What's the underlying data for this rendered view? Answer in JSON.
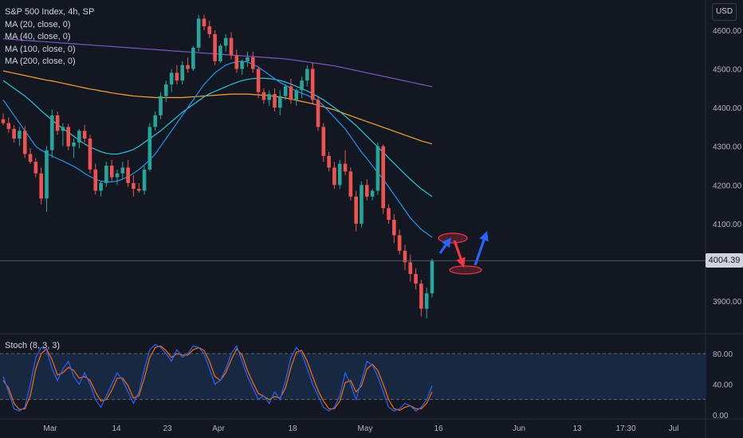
{
  "symbol_label": "S&P 500 Index, 4h, SP",
  "currency_label": "USD",
  "last_price": "4004.39",
  "indicators": [
    "MA (20, close, 0)",
    "MA (40, close, 0)",
    "MA (100, close, 0)",
    "MA (200, close, 0)"
  ],
  "oscillator_label": "Stoch (8, 3, 3)",
  "colors": {
    "up": "#26a69a",
    "down": "#ef5350",
    "ma20": "#2196f3",
    "ma40": "#26c6da",
    "ma100": "#f7a33a",
    "ma200": "#7e57c2",
    "stoch_k": "#2962ff",
    "stoch_d": "#ff6d00",
    "arrow_blue": "#2962ff",
    "arrow_red": "#f23645"
  },
  "chart_data": [
    {
      "type": "candlestick",
      "title": "S&P 500 Index, 4h, SP",
      "y_range": [
        3820,
        4660
      ],
      "y_ticks": [
        3900,
        4000,
        4100,
        4200,
        4300,
        4400,
        4500,
        4600
      ],
      "y_tick_labels": [
        "3900.00",
        "4000.00",
        "4100.00",
        "4200.00",
        "4300.00",
        "4400.00",
        "4500.00",
        "4600.00"
      ],
      "x_tick_labels": [
        "Mar",
        "14",
        "23",
        "Apr",
        "18",
        "May",
        "16",
        "Jun",
        "13",
        "17:30",
        "Jul"
      ],
      "candles_ohlc": [
        [
          4370,
          4385,
          4355,
          4360
        ],
        [
          4360,
          4375,
          4335,
          4345
        ],
        [
          4345,
          4355,
          4310,
          4320
        ],
        [
          4320,
          4350,
          4300,
          4340
        ],
        [
          4340,
          4352,
          4270,
          4280
        ],
        [
          4280,
          4295,
          4255,
          4260
        ],
        [
          4260,
          4270,
          4220,
          4230
        ],
        [
          4230,
          4245,
          4150,
          4165
        ],
        [
          4165,
          4300,
          4130,
          4290
        ],
        [
          4290,
          4395,
          4270,
          4380
        ],
        [
          4380,
          4390,
          4330,
          4340
        ],
        [
          4340,
          4360,
          4300,
          4350
        ],
        [
          4350,
          4358,
          4290,
          4300
        ],
        [
          4300,
          4320,
          4270,
          4310
        ],
        [
          4310,
          4345,
          4295,
          4340
        ],
        [
          4340,
          4355,
          4310,
          4320
        ],
        [
          4320,
          4330,
          4230,
          4240
        ],
        [
          4240,
          4255,
          4175,
          4185
        ],
        [
          4185,
          4210,
          4170,
          4205
        ],
        [
          4205,
          4260,
          4195,
          4250
        ],
        [
          4250,
          4265,
          4210,
          4220
        ],
        [
          4220,
          4240,
          4200,
          4230
        ],
        [
          4230,
          4260,
          4215,
          4245
        ],
        [
          4245,
          4265,
          4195,
          4205
        ],
        [
          4205,
          4225,
          4170,
          4190
        ],
        [
          4190,
          4205,
          4180,
          4185
        ],
        [
          4185,
          4250,
          4175,
          4240
        ],
        [
          4240,
          4360,
          4235,
          4350
        ],
        [
          4350,
          4390,
          4340,
          4380
        ],
        [
          4380,
          4440,
          4370,
          4430
        ],
        [
          4430,
          4470,
          4415,
          4460
        ],
        [
          4460,
          4500,
          4440,
          4490
        ],
        [
          4490,
          4510,
          4460,
          4470
        ],
        [
          4470,
          4520,
          4460,
          4510
        ],
        [
          4510,
          4530,
          4490,
          4500
        ],
        [
          4500,
          4560,
          4495,
          4555
        ],
        [
          4555,
          4640,
          4545,
          4630
        ],
        [
          4630,
          4640,
          4600,
          4610
        ],
        [
          4610,
          4625,
          4580,
          4590
        ],
        [
          4590,
          4600,
          4510,
          4520
        ],
        [
          4520,
          4565,
          4515,
          4560
        ],
        [
          4560,
          4590,
          4545,
          4580
        ],
        [
          4580,
          4595,
          4525,
          4535
        ],
        [
          4535,
          4550,
          4490,
          4500
        ],
        [
          4500,
          4525,
          4485,
          4520
        ],
        [
          4520,
          4545,
          4505,
          4530
        ],
        [
          4530,
          4545,
          4490,
          4500
        ],
        [
          4500,
          4505,
          4425,
          4440
        ],
        [
          4440,
          4450,
          4410,
          4420
        ],
        [
          4420,
          4445,
          4405,
          4435
        ],
        [
          4435,
          4450,
          4390,
          4400
        ],
        [
          4400,
          4445,
          4380,
          4430
        ],
        [
          4430,
          4460,
          4420,
          4455
        ],
        [
          4455,
          4475,
          4410,
          4420
        ],
        [
          4420,
          4450,
          4405,
          4445
        ],
        [
          4445,
          4480,
          4425,
          4470
        ],
        [
          4470,
          4510,
          4455,
          4500
        ],
        [
          4500,
          4515,
          4410,
          4420
        ],
        [
          4420,
          4430,
          4340,
          4350
        ],
        [
          4350,
          4360,
          4260,
          4275
        ],
        [
          4275,
          4285,
          4235,
          4245
        ],
        [
          4245,
          4260,
          4190,
          4200
        ],
        [
          4200,
          4265,
          4190,
          4255
        ],
        [
          4255,
          4290,
          4225,
          4235
        ],
        [
          4235,
          4245,
          4160,
          4170
        ],
        [
          4170,
          4185,
          4080,
          4100
        ],
        [
          4100,
          4210,
          4090,
          4200
        ],
        [
          4200,
          4215,
          4160,
          4170
        ],
        [
          4170,
          4190,
          4160,
          4185
        ],
        [
          4185,
          4310,
          4175,
          4300
        ],
        [
          4300,
          4305,
          4125,
          4140
        ],
        [
          4140,
          4150,
          4100,
          4110
        ],
        [
          4110,
          4125,
          4050,
          4070
        ],
        [
          4070,
          4085,
          4020,
          4030
        ],
        [
          4030,
          4045,
          3980,
          4000
        ],
        [
          4000,
          4020,
          3950,
          3970
        ],
        [
          3970,
          3985,
          3930,
          3945
        ],
        [
          3945,
          3955,
          3860,
          3880
        ],
        [
          3880,
          3935,
          3855,
          3920
        ],
        [
          3920,
          4010,
          3910,
          4004.39
        ]
      ],
      "ma20": [
        4420,
        4400,
        4380,
        4360,
        4340,
        4320,
        4300,
        4290,
        4282,
        4275,
        4268,
        4262,
        4255,
        4248,
        4240,
        4230,
        4222,
        4215,
        4210,
        4208,
        4208,
        4210,
        4215,
        4222,
        4230,
        4240,
        4252,
        4265,
        4280,
        4300,
        4320,
        4340,
        4360,
        4380,
        4400,
        4420,
        4440,
        4460,
        4475,
        4490,
        4500,
        4510,
        4515,
        4518,
        4520,
        4518,
        4512,
        4505,
        4495,
        4485,
        4475,
        4465,
        4458,
        4450,
        4443,
        4437,
        4432,
        4425,
        4418,
        4405,
        4390,
        4375,
        4360,
        4345,
        4325,
        4305,
        4285,
        4268,
        4250,
        4232,
        4215,
        4195,
        4175,
        4155,
        4135,
        4115,
        4100,
        4085,
        4075,
        4065
      ],
      "ma40": [
        4470,
        4460,
        4450,
        4440,
        4430,
        4418,
        4405,
        4392,
        4380,
        4368,
        4356,
        4346,
        4336,
        4326,
        4316,
        4306,
        4298,
        4292,
        4286,
        4282,
        4280,
        4280,
        4283,
        4287,
        4292,
        4300,
        4310,
        4320,
        4330,
        4340,
        4352,
        4364,
        4376,
        4388,
        4398,
        4408,
        4418,
        4428,
        4436,
        4442,
        4448,
        4454,
        4460,
        4465,
        4470,
        4473,
        4475,
        4476,
        4476,
        4475,
        4473,
        4470,
        4466,
        4461,
        4455,
        4449,
        4443,
        4436,
        4428,
        4420,
        4410,
        4400,
        4390,
        4378,
        4366,
        4354,
        4340,
        4326,
        4312,
        4298,
        4284,
        4270,
        4256,
        4242,
        4228,
        4215,
        4202,
        4190,
        4180,
        4170
      ],
      "ma100": [
        4495,
        4492,
        4489,
        4486,
        4483,
        4480,
        4477,
        4474,
        4471,
        4469,
        4466,
        4463,
        4460,
        4457,
        4454,
        4451,
        4448,
        4446,
        4443,
        4441,
        4438,
        4436,
        4434,
        4432,
        4430,
        4429,
        4428,
        4427,
        4426,
        4426,
        4426,
        4426,
        4426,
        4426,
        4427,
        4428,
        4429,
        4430,
        4431,
        4432,
        4433,
        4434,
        4435,
        4435,
        4435,
        4435,
        4434,
        4433,
        4432,
        4431,
        4429,
        4427,
        4425,
        4422,
        4419,
        4416,
        4413,
        4410,
        4406,
        4402,
        4398,
        4394,
        4389,
        4384,
        4379,
        4374,
        4369,
        4364,
        4359,
        4354,
        4349,
        4344,
        4339,
        4334,
        4329,
        4324,
        4319,
        4314,
        4310,
        4306
      ],
      "ma200": [
        4578,
        4577,
        4576,
        4575,
        4574,
        4573,
        4572,
        4571,
        4570,
        4569,
        4568,
        4567,
        4566,
        4565,
        4564,
        4563,
        4562,
        4561,
        4560,
        4559,
        4558,
        4557,
        4556,
        4555,
        4554,
        4553,
        4552,
        4551,
        4550,
        4549,
        4548,
        4547,
        4546,
        4545,
        4544,
        4543,
        4542,
        4541,
        4540,
        4539,
        4538,
        4537,
        4536,
        4535,
        4534,
        4533,
        4532,
        4531,
        4530,
        4529,
        4528,
        4527,
        4526,
        4524,
        4522,
        4520,
        4518,
        4516,
        4514,
        4512,
        4510,
        4508,
        4505,
        4502,
        4499,
        4496,
        4493,
        4490,
        4487,
        4484,
        4481,
        4478,
        4475,
        4472,
        4469,
        4466,
        4463,
        4460,
        4457,
        4454
      ]
    },
    {
      "type": "line",
      "title": "Stoch (8, 3, 3)",
      "y_range": [
        0,
        100
      ],
      "y_ticks": [
        0,
        40,
        80
      ],
      "y_tick_labels": [
        "0.00",
        "40.00",
        "80.00"
      ],
      "band": [
        20,
        80
      ],
      "series": [
        {
          "name": "%K",
          "values": [
            50,
            30,
            8,
            5,
            10,
            40,
            75,
            88,
            85,
            60,
            45,
            60,
            70,
            50,
            40,
            55,
            40,
            20,
            10,
            25,
            40,
            55,
            45,
            30,
            15,
            30,
            60,
            85,
            92,
            88,
            80,
            70,
            85,
            75,
            80,
            90,
            88,
            80,
            60,
            40,
            45,
            60,
            80,
            90,
            70,
            50,
            35,
            20,
            25,
            15,
            30,
            20,
            45,
            75,
            88,
            80,
            60,
            40,
            25,
            10,
            5,
            10,
            25,
            55,
            40,
            20,
            45,
            70,
            65,
            50,
            30,
            10,
            5,
            8,
            15,
            12,
            5,
            10,
            20,
            38
          ]
        },
        {
          "name": "%D",
          "values": [
            45,
            35,
            15,
            7,
            8,
            25,
            60,
            80,
            86,
            72,
            52,
            55,
            62,
            58,
            48,
            50,
            45,
            30,
            18,
            20,
            32,
            48,
            48,
            38,
            22,
            25,
            48,
            75,
            88,
            90,
            84,
            75,
            80,
            78,
            78,
            85,
            88,
            84,
            70,
            50,
            45,
            55,
            72,
            86,
            78,
            58,
            42,
            28,
            24,
            20,
            24,
            22,
            35,
            62,
            82,
            84,
            70,
            50,
            32,
            18,
            8,
            8,
            18,
            42,
            45,
            30,
            38,
            60,
            66,
            58,
            40,
            20,
            8,
            6,
            10,
            12,
            8,
            8,
            15,
            30
          ]
        }
      ]
    }
  ]
}
